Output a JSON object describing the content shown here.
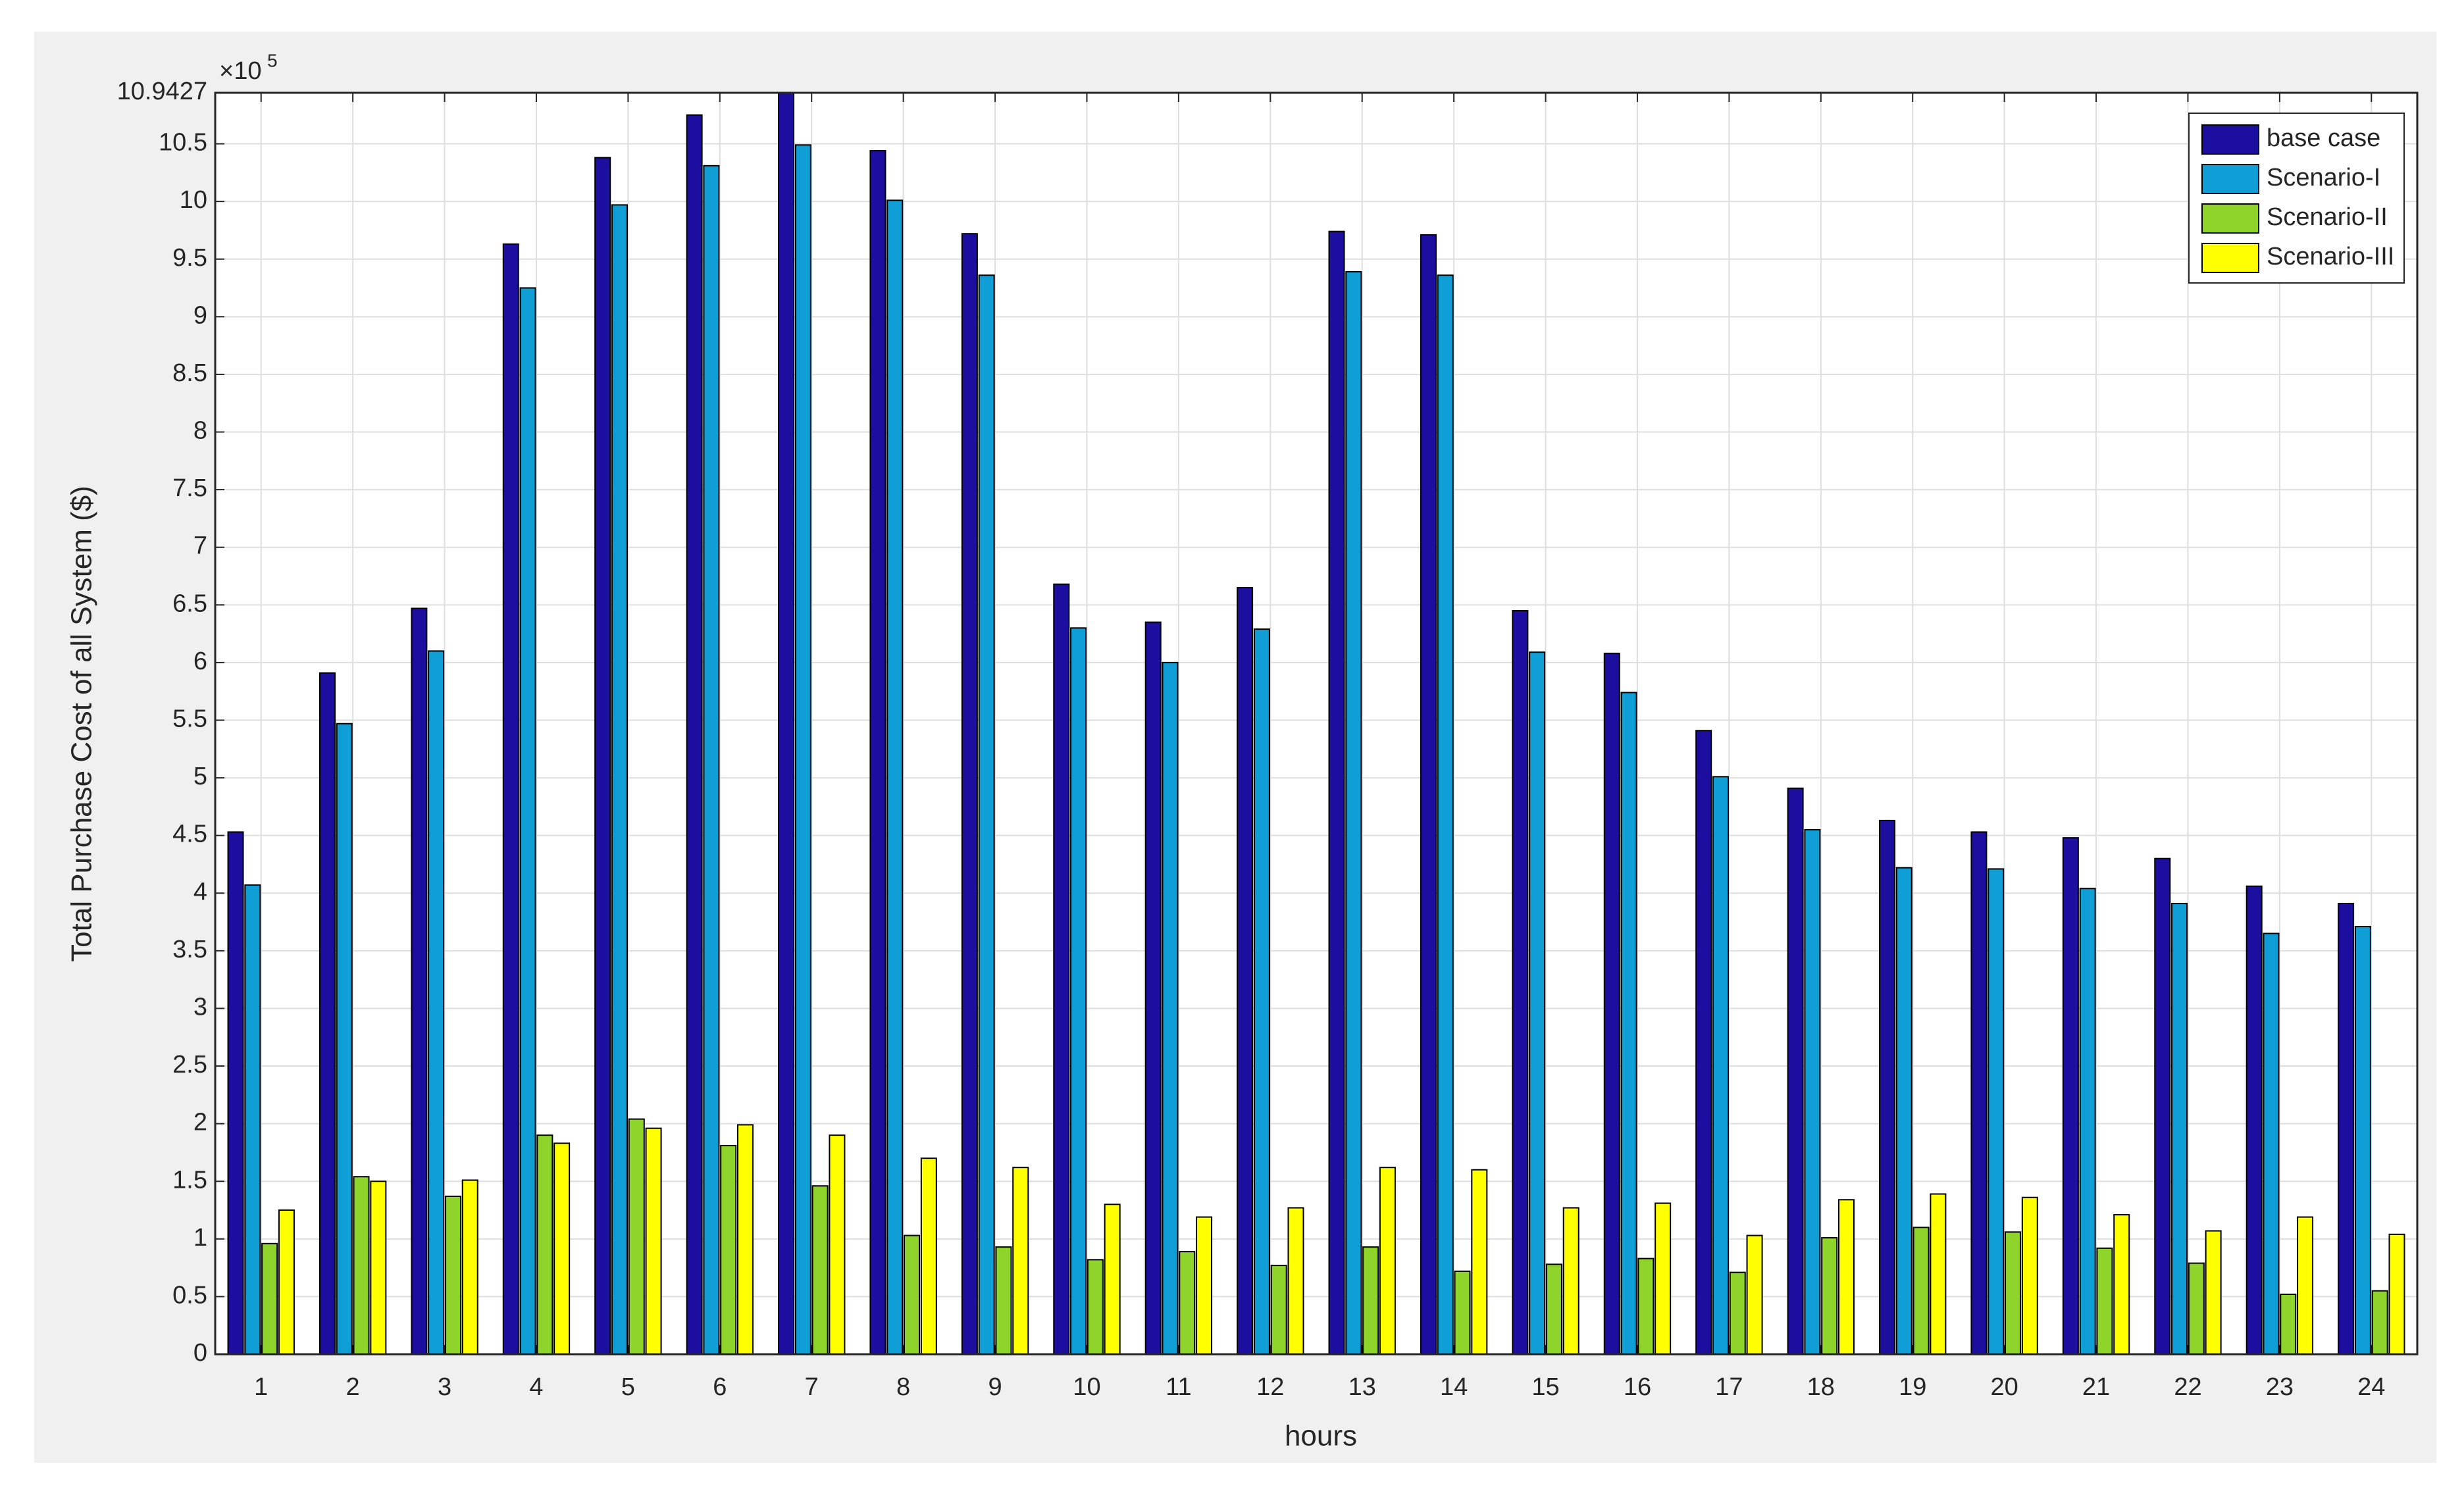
{
  "chart_data": {
    "type": "bar",
    "x_label": "hours",
    "y_label": "Total Purchase Cost of all System ($)",
    "y_scale_base": "×10",
    "y_scale_exponent": "5",
    "categories": [
      "1",
      "2",
      "3",
      "4",
      "5",
      "6",
      "7",
      "8",
      "9",
      "10",
      "11",
      "12",
      "13",
      "14",
      "15",
      "16",
      "17",
      "18",
      "19",
      "20",
      "21",
      "22",
      "23",
      "24"
    ],
    "series": [
      {
        "name": "base case",
        "color": "#1c0e9e",
        "values": [
          4.53,
          5.91,
          6.47,
          9.63,
          10.38,
          10.75,
          10.94,
          10.44,
          9.72,
          6.68,
          6.35,
          6.65,
          9.74,
          9.71,
          6.45,
          6.08,
          5.41,
          4.91,
          4.63,
          4.53,
          4.48,
          4.3,
          4.06,
          3.91
        ]
      },
      {
        "name": "Scenario-I",
        "color": "#0f9ed6",
        "values": [
          4.07,
          5.47,
          6.1,
          9.25,
          9.97,
          10.31,
          10.49,
          10.01,
          9.36,
          6.3,
          6.0,
          6.29,
          9.39,
          9.36,
          6.09,
          5.74,
          5.01,
          4.55,
          4.22,
          4.21,
          4.04,
          3.91,
          3.65,
          3.71
        ]
      },
      {
        "name": "Scenario-II",
        "color": "#8fd42a",
        "values": [
          0.96,
          1.54,
          1.37,
          1.9,
          2.04,
          1.81,
          1.46,
          1.03,
          0.93,
          0.82,
          0.89,
          0.77,
          0.93,
          0.72,
          0.78,
          0.83,
          0.71,
          1.01,
          1.1,
          1.06,
          0.92,
          0.79,
          0.52,
          0.55
        ]
      },
      {
        "name": "Scenario-III",
        "color": "#ffff00",
        "values": [
          1.25,
          1.5,
          1.51,
          1.83,
          1.96,
          1.99,
          1.9,
          1.7,
          1.62,
          1.3,
          1.19,
          1.27,
          1.62,
          1.6,
          1.27,
          1.31,
          1.03,
          1.34,
          1.39,
          1.36,
          1.21,
          1.07,
          1.19,
          1.04
        ]
      }
    ],
    "ylim": [
      0,
      10.9427
    ],
    "yticks": [
      0,
      0.5,
      1,
      1.5,
      2,
      2.5,
      3,
      3.5,
      4,
      4.5,
      5,
      5.5,
      6,
      6.5,
      7,
      7.5,
      8,
      8.5,
      9,
      9.5,
      10,
      10.5,
      10.9427
    ],
    "grid": true,
    "legend_position": "northeast"
  }
}
